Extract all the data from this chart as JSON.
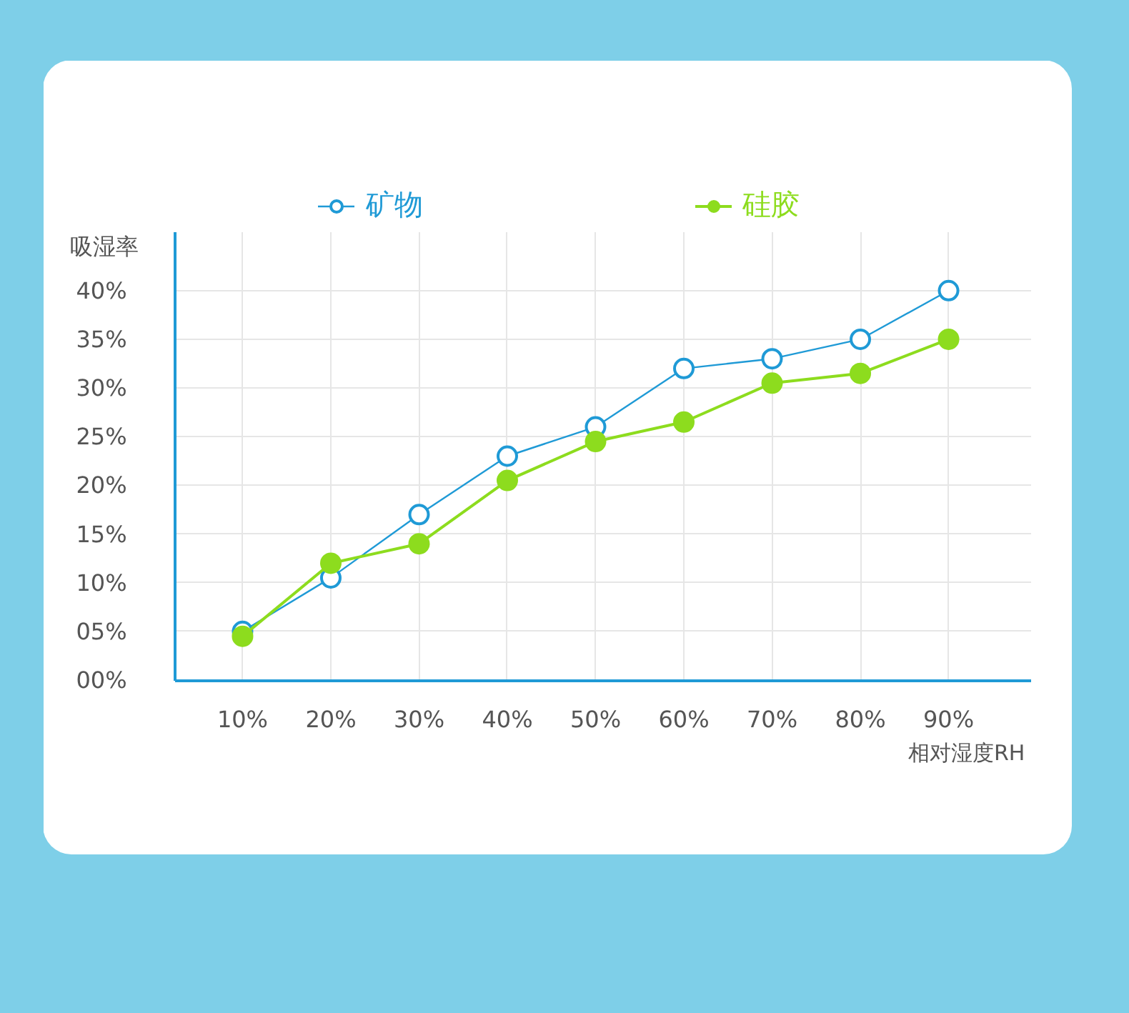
{
  "chart_data": {
    "type": "line",
    "xlabel": "相对湿度RH",
    "ylabel": "吸湿率",
    "x": [
      10,
      20,
      30,
      40,
      50,
      60,
      70,
      80,
      90
    ],
    "xlim": [
      2.4,
      99.3
    ],
    "xticks": [
      {
        "value": 10,
        "label": "10%"
      },
      {
        "value": 20,
        "label": "20%"
      },
      {
        "value": 30,
        "label": "30%"
      },
      {
        "value": 40,
        "label": "40%"
      },
      {
        "value": 50,
        "label": "50%"
      },
      {
        "value": 60,
        "label": "60%"
      },
      {
        "value": 70,
        "label": "70%"
      },
      {
        "value": 80,
        "label": "80%"
      },
      {
        "value": 90,
        "label": "90%"
      }
    ],
    "ylim": [
      0,
      46
    ],
    "yticks": [
      {
        "value": 0,
        "label": "00%"
      },
      {
        "value": 5,
        "label": "05%"
      },
      {
        "value": 10,
        "label": "10%"
      },
      {
        "value": 15,
        "label": "15%"
      },
      {
        "value": 20,
        "label": "20%"
      },
      {
        "value": 25,
        "label": "25%"
      },
      {
        "value": 30,
        "label": "30%"
      },
      {
        "value": 35,
        "label": "35%"
      },
      {
        "value": 40,
        "label": "40%"
      }
    ],
    "grid": true,
    "legend": "top",
    "marker": "circle",
    "series": [
      {
        "name": "矿物",
        "color": "#1f9ad6",
        "values": [
          5,
          10.5,
          17,
          23,
          26,
          32,
          33,
          35,
          40
        ]
      },
      {
        "name": "硅胶",
        "color": "#8ddc1e",
        "values": [
          4.5,
          12,
          14,
          20.5,
          24.5,
          26.5,
          30.5,
          31.5,
          35
        ]
      }
    ]
  }
}
